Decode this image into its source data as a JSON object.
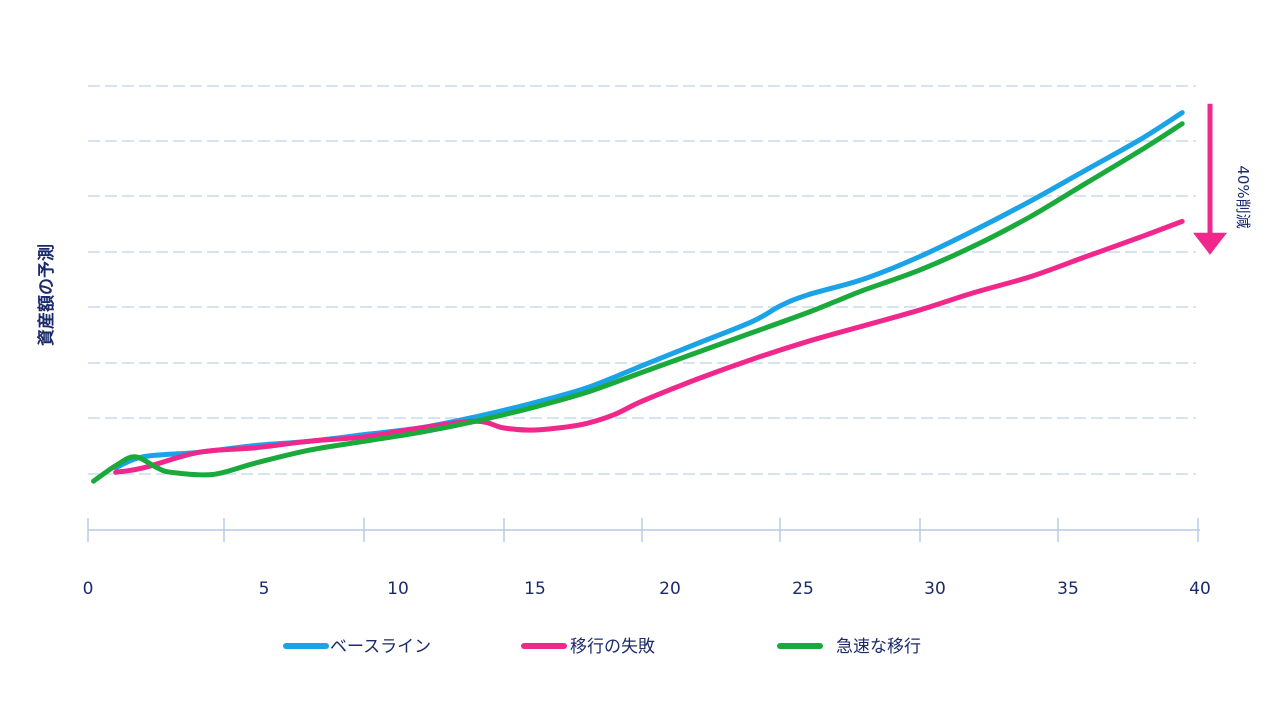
{
  "colors": {
    "baseline": "#1aa3e6",
    "failure": "#f0288c",
    "rapid": "#1aaa3c",
    "grid": "#c9dbee",
    "axis": "#b7cbe2",
    "text": "#1b2a6b",
    "arrow": "#f0288c"
  },
  "chart_data": {
    "type": "line",
    "title": "",
    "xlabel": "",
    "ylabel": "資産額の予測",
    "xlim": [
      0,
      40
    ],
    "ylim": [
      0,
      10
    ],
    "xticks": [
      0,
      5,
      10,
      15,
      20,
      25,
      30,
      35,
      40
    ],
    "xtick_labels": [
      "0",
      "5",
      "10",
      "15",
      "20",
      "25",
      "30",
      "35",
      "40"
    ],
    "grid": true,
    "legend_position": "bottom",
    "annotation": {
      "text": "40%削減",
      "from_value": 9.6,
      "to_value": 6.2,
      "at_x": 40
    },
    "series": [
      {
        "name": "ベースライン",
        "color_key": "baseline",
        "x": [
          1,
          2,
          4,
          6,
          8,
          10,
          12,
          14,
          16,
          18,
          20,
          22,
          24,
          25,
          26,
          28,
          30,
          32,
          34,
          36,
          38,
          39.5
        ],
        "values": [
          1.4,
          1.65,
          1.75,
          1.9,
          2.0,
          2.15,
          2.3,
          2.55,
          2.85,
          3.2,
          3.7,
          4.2,
          4.7,
          5.05,
          5.3,
          5.65,
          6.15,
          6.75,
          7.4,
          8.1,
          8.8,
          9.4
        ]
      },
      {
        "name": "移行の失敗",
        "color_key": "failure",
        "x": [
          1,
          2,
          4,
          6,
          8,
          10,
          12,
          14,
          15,
          16,
          17,
          18,
          19,
          20,
          22,
          24,
          26,
          28,
          30,
          32,
          34,
          36,
          38,
          39.5
        ],
        "values": [
          1.3,
          1.4,
          1.75,
          1.85,
          2.0,
          2.1,
          2.3,
          2.45,
          2.3,
          2.25,
          2.3,
          2.4,
          2.6,
          2.9,
          3.4,
          3.85,
          4.25,
          4.6,
          4.95,
          5.35,
          5.7,
          6.15,
          6.6,
          6.95
        ]
      },
      {
        "name": "急速な移行",
        "color_key": "rapid",
        "x": [
          0.2,
          1,
          1.7,
          2.5,
          3,
          4.5,
          6,
          8,
          10,
          12,
          14,
          16,
          18,
          20,
          22,
          24,
          26,
          27,
          28,
          30,
          32,
          34,
          36,
          38,
          39.5
        ],
        "values": [
          1.1,
          1.45,
          1.65,
          1.4,
          1.3,
          1.25,
          1.5,
          1.8,
          2.0,
          2.2,
          2.45,
          2.75,
          3.1,
          3.55,
          4.0,
          4.45,
          4.9,
          5.15,
          5.4,
          5.85,
          6.4,
          7.05,
          7.8,
          8.55,
          9.15
        ]
      }
    ]
  },
  "legend": {
    "baseline": "ベースライン",
    "failure": "移行の失敗",
    "rapid": "急速な移行"
  }
}
